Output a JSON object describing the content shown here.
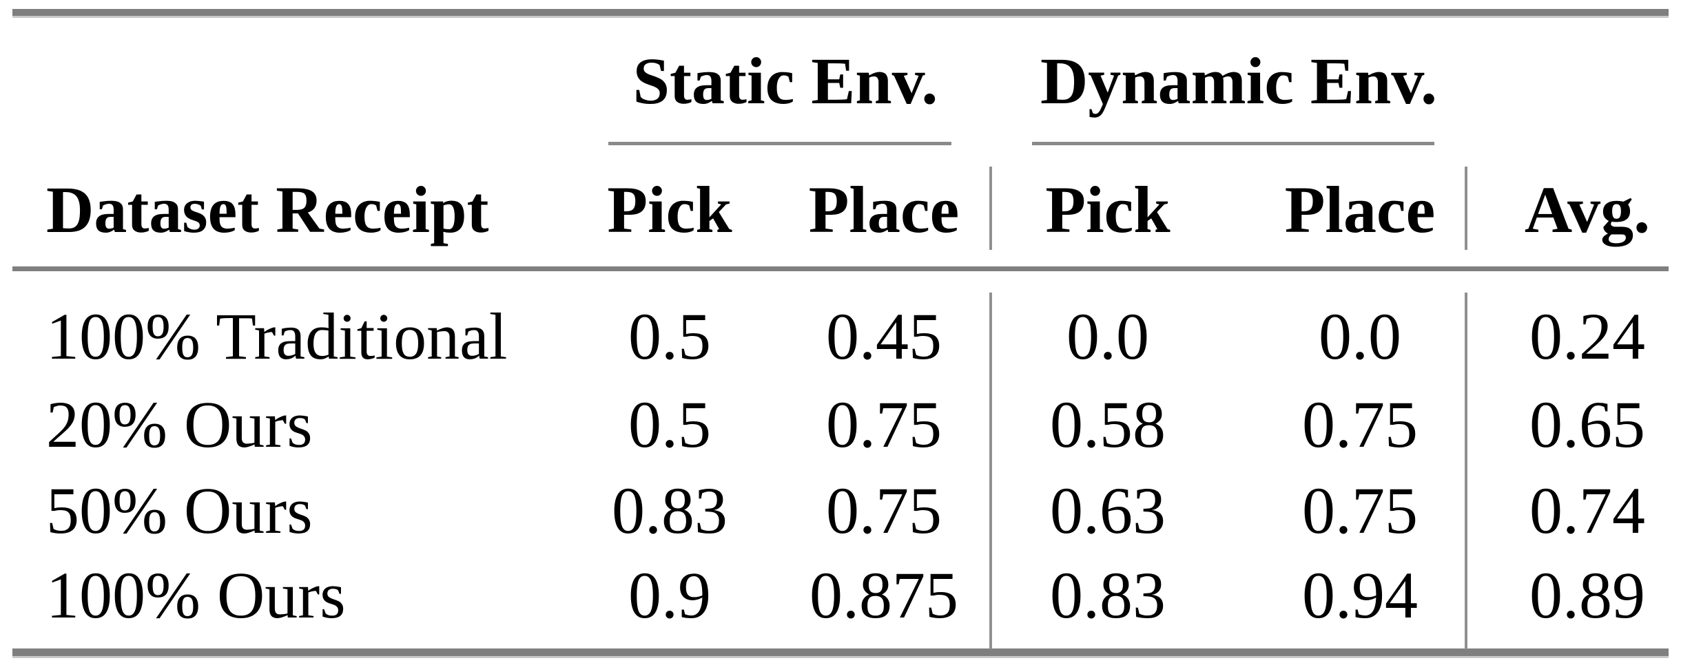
{
  "table": {
    "group_headers": {
      "static": "Static Env.",
      "dynamic": "Dynamic Env."
    },
    "column_headers": {
      "dataset": "Dataset Receipt",
      "static_pick": "Pick",
      "static_place": "Place",
      "dynamic_pick": "Pick",
      "dynamic_place": "Place",
      "avg": "Avg."
    },
    "rows": [
      {
        "dataset": "100% Traditional",
        "static_pick": "0.5",
        "static_place": "0.45",
        "dynamic_pick": "0.0",
        "dynamic_place": "0.0",
        "avg": "0.24"
      },
      {
        "dataset": "20% Ours",
        "static_pick": "0.5",
        "static_place": "0.75",
        "dynamic_pick": "0.58",
        "dynamic_place": "0.75",
        "avg": "0.65"
      },
      {
        "dataset": "50% Ours",
        "static_pick": "0.83",
        "static_place": "0.75",
        "dynamic_pick": "0.63",
        "dynamic_place": "0.75",
        "avg": "0.74"
      },
      {
        "dataset": "100% Ours",
        "static_pick": "0.9",
        "static_place": "0.875",
        "dynamic_pick": "0.83",
        "dynamic_place": "0.94",
        "avg": "0.89"
      }
    ],
    "colors": {
      "text": "#000000",
      "rule_heavy": "#7f7f7f",
      "rule_light": "#8a8a8a",
      "divider": "#909090",
      "background": "#ffffff"
    }
  }
}
